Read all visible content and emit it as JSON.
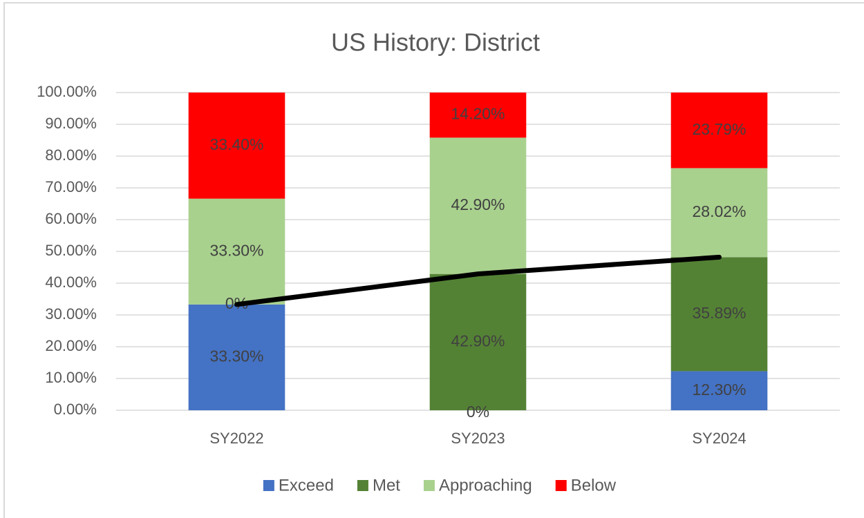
{
  "chart_data": {
    "type": "stacked-bar",
    "title": "US History: District",
    "categories": [
      "SY2022",
      "SY2023",
      "SY2024"
    ],
    "series": [
      {
        "name": "Exceed",
        "color": "#4472c4",
        "values": [
          33.3,
          0,
          12.3
        ],
        "value_labels": [
          "33.30%",
          "0%",
          "12.30%"
        ]
      },
      {
        "name": "Met",
        "color": "#548235",
        "values": [
          0,
          42.9,
          35.89
        ],
        "value_labels": [
          "0%",
          "42.90%",
          "35.89%"
        ]
      },
      {
        "name": "Approaching",
        "color": "#a9d18e",
        "values": [
          33.3,
          42.9,
          28.02
        ],
        "value_labels": [
          "33.30%",
          "42.90%",
          "28.02%"
        ]
      },
      {
        "name": "Below",
        "color": "#ff0000",
        "values": [
          33.4,
          14.2,
          23.79
        ],
        "value_labels": [
          "33.40%",
          "14.20%",
          "23.79%"
        ]
      }
    ],
    "line": {
      "color": "#000000",
      "values": [
        33.3,
        42.9,
        48.19
      ]
    },
    "ylim": [
      0,
      100
    ],
    "yticks": [
      {
        "value": 0,
        "label": "0.00%"
      },
      {
        "value": 10,
        "label": "10.00%"
      },
      {
        "value": 20,
        "label": "20.00%"
      },
      {
        "value": 30,
        "label": "30.00%"
      },
      {
        "value": 40,
        "label": "40.00%"
      },
      {
        "value": 50,
        "label": "50.00%"
      },
      {
        "value": 60,
        "label": "60.00%"
      },
      {
        "value": 70,
        "label": "70.00%"
      },
      {
        "value": 80,
        "label": "80.00%"
      },
      {
        "value": 90,
        "label": "90.00%"
      },
      {
        "value": 100,
        "label": "100.00%"
      }
    ],
    "grid": true,
    "legend": "bottom"
  }
}
